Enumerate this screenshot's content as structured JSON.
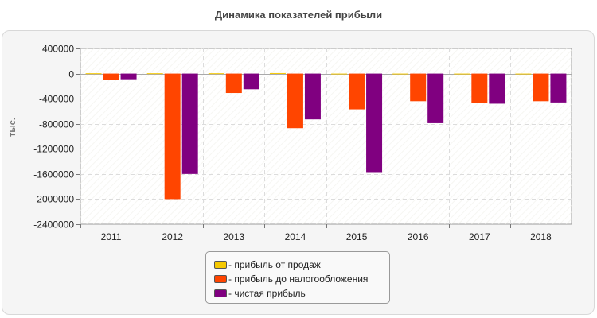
{
  "chart_data": {
    "type": "bar",
    "title": "Динамика показателей прибыли",
    "ylabel": "тыс.",
    "xlabel": "",
    "categories": [
      "2011",
      "2012",
      "2013",
      "2014",
      "2015",
      "2016",
      "2017",
      "2018"
    ],
    "ylim": [
      -2400000,
      400000
    ],
    "yticks": [
      400000,
      0,
      -400000,
      -800000,
      -1200000,
      -1600000,
      -2000000,
      -2400000
    ],
    "ytick_labels": [
      "400000",
      "0",
      "-400000",
      "-800000",
      "-1200000",
      "-1600000",
      "-2000000",
      "-2400000"
    ],
    "grid": true,
    "legend_position": "bottom-center",
    "series": [
      {
        "name": "прибыль от продаж",
        "color": "#f5c800",
        "values": [
          5000,
          5000,
          5000,
          8000,
          -5000,
          -5000,
          -5000,
          -5000
        ]
      },
      {
        "name": "прибыль до налогообложения",
        "color": "#ff4500",
        "values": [
          -100000,
          -2000000,
          -310000,
          -870000,
          -570000,
          -440000,
          -470000,
          -440000
        ]
      },
      {
        "name": "чистая прибыль",
        "color": "#800080",
        "values": [
          -90000,
          -1600000,
          -250000,
          -730000,
          -1570000,
          -790000,
          -480000,
          -460000
        ]
      }
    ]
  }
}
